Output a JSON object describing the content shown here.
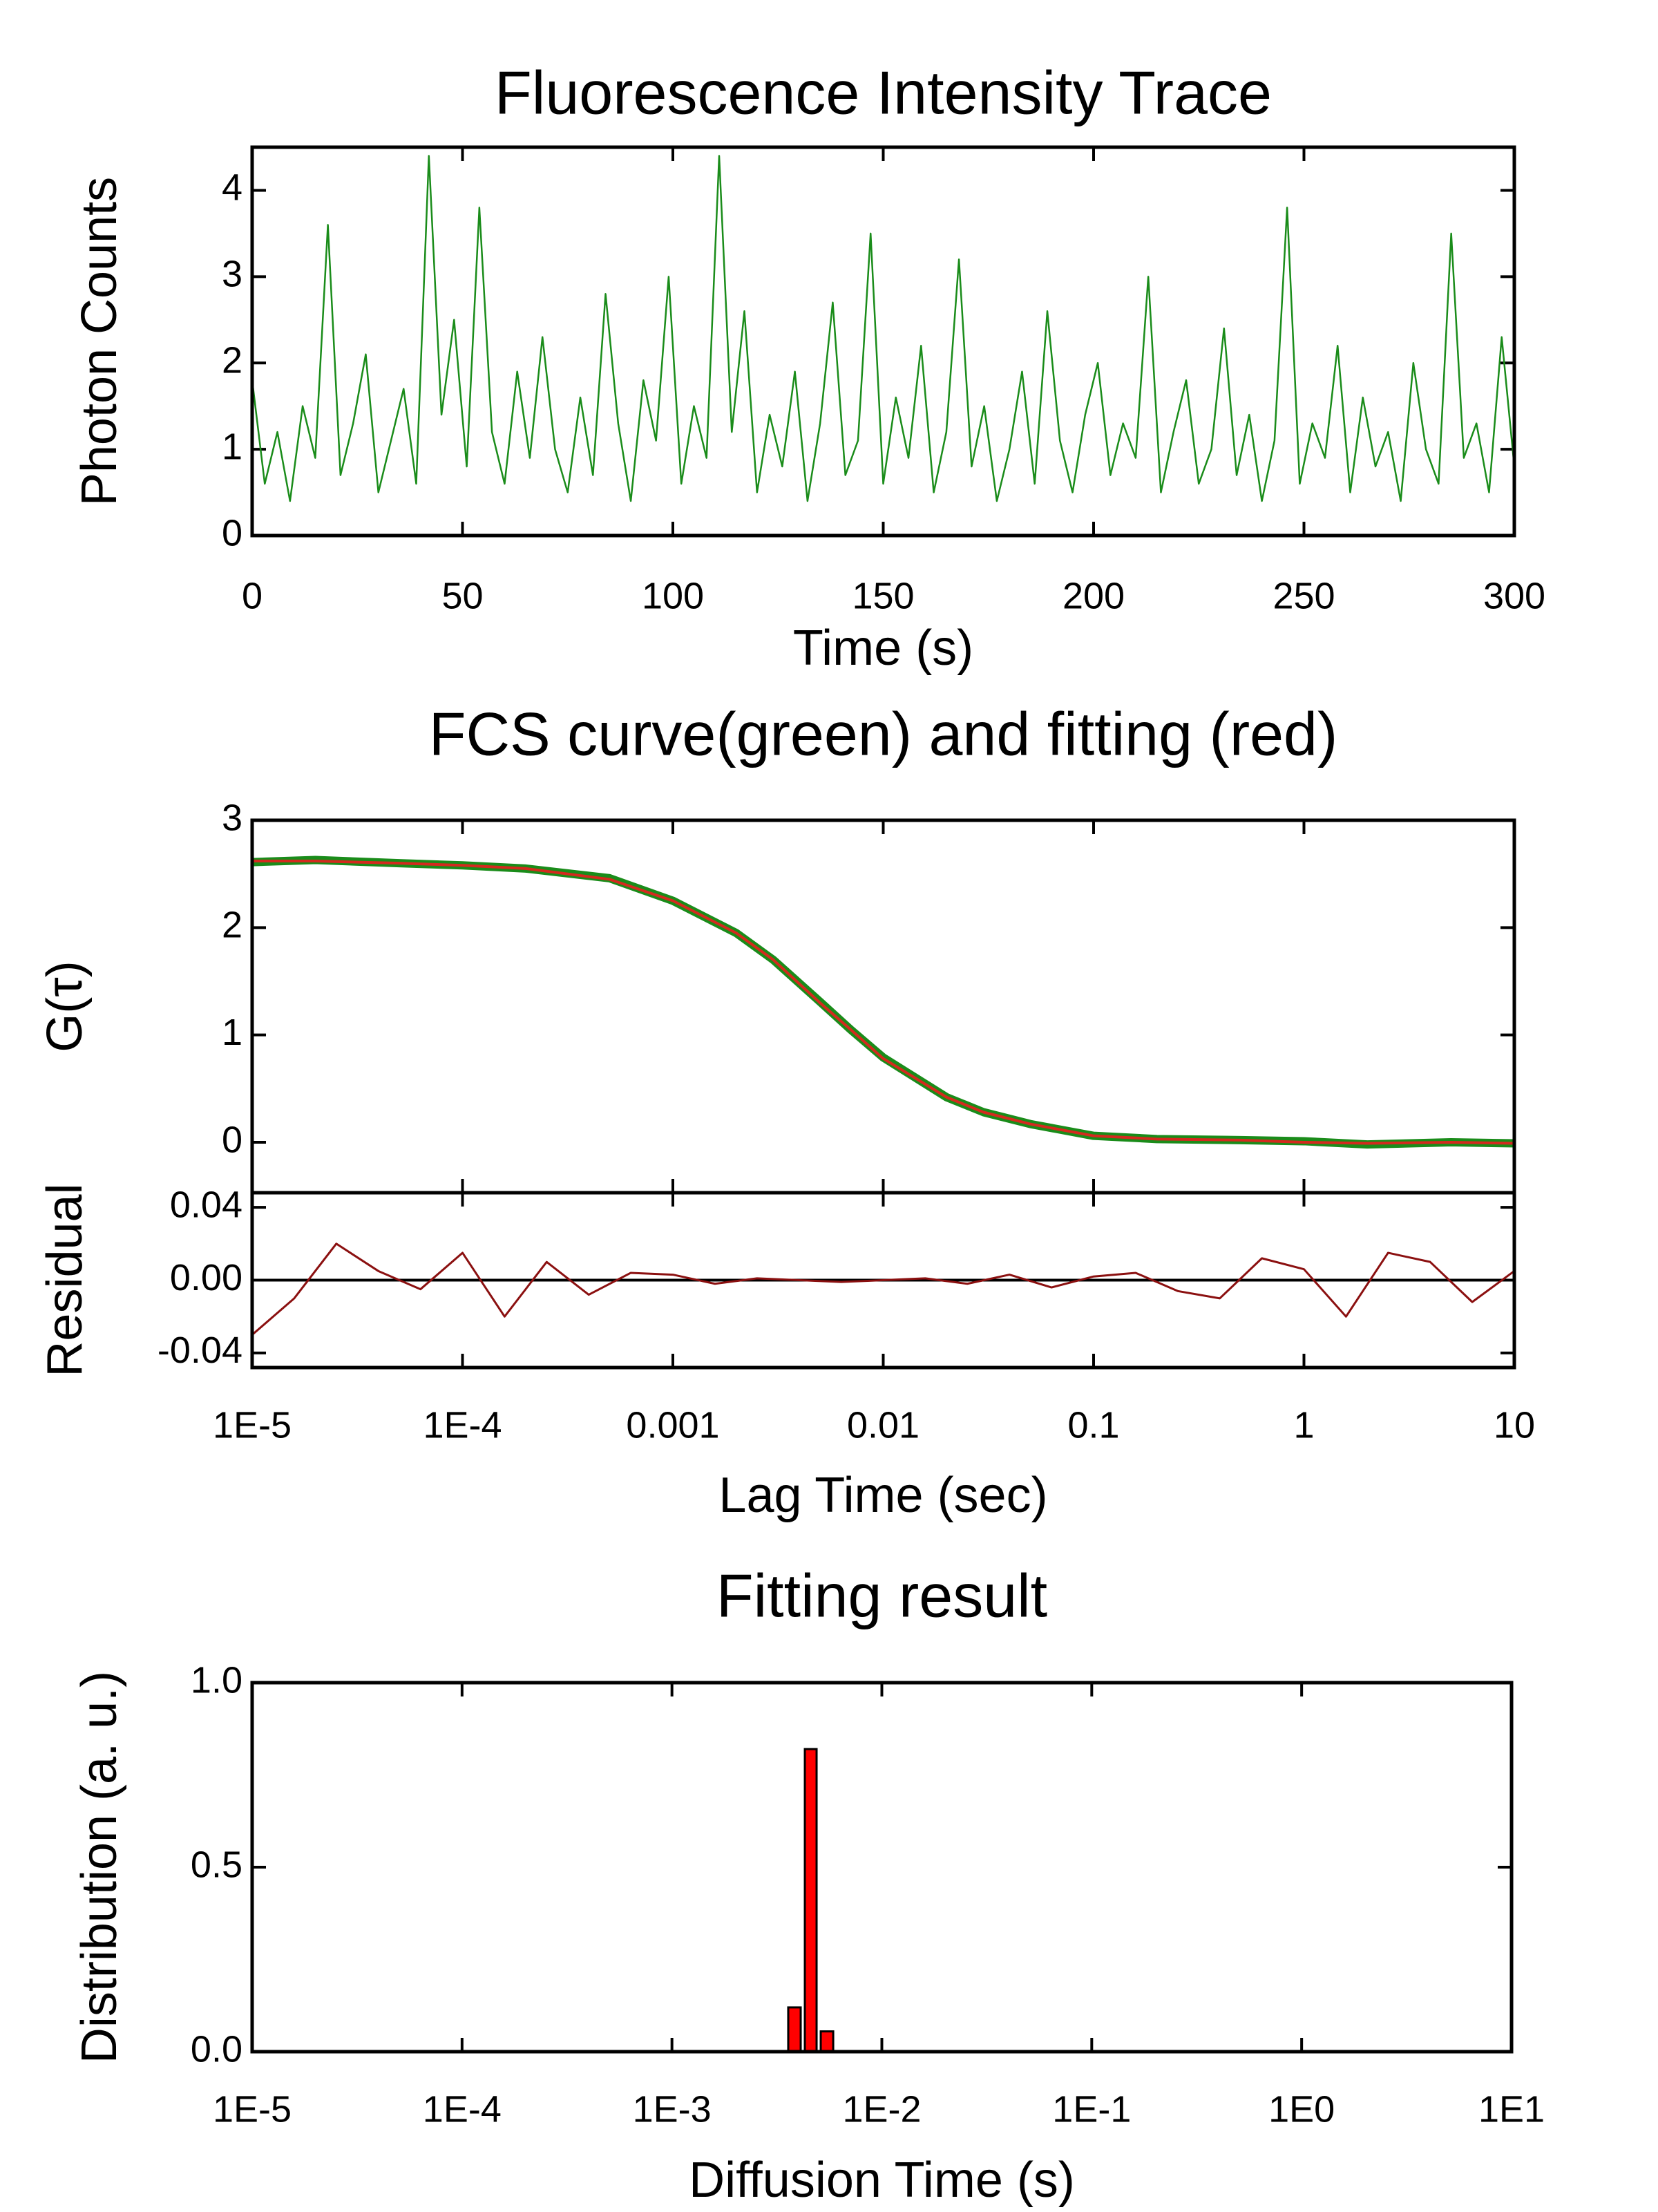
{
  "chart_data": [
    {
      "type": "line",
      "title": "Fluorescence Intensity Trace",
      "xlabel": "Time (s)",
      "ylabel": "Photon Counts",
      "x": [
        0,
        3,
        6,
        9,
        12,
        15,
        18,
        21,
        24,
        27,
        30,
        33,
        36,
        39,
        42,
        45,
        48,
        51,
        54,
        57,
        60,
        63,
        66,
        69,
        72,
        75,
        78,
        81,
        84,
        87,
        90,
        93,
        96,
        99,
        102,
        105,
        108,
        111,
        114,
        117,
        120,
        123,
        126,
        129,
        132,
        135,
        138,
        141,
        144,
        147,
        150,
        153,
        156,
        159,
        162,
        165,
        168,
        171,
        174,
        177,
        180,
        183,
        186,
        189,
        192,
        195,
        198,
        201,
        204,
        207,
        210,
        213,
        216,
        219,
        222,
        225,
        228,
        231,
        234,
        237,
        240,
        243,
        246,
        249,
        252,
        255,
        258,
        261,
        264,
        267,
        270,
        273,
        276,
        279,
        282,
        285,
        288,
        291,
        294,
        297,
        300
      ],
      "series": [
        {
          "color": "#1a8c1a",
          "values": [
            1.8,
            0.6,
            1.2,
            0.4,
            1.5,
            0.9,
            3.6,
            0.7,
            1.3,
            2.1,
            0.5,
            1.1,
            1.7,
            0.6,
            4.4,
            1.4,
            2.5,
            0.8,
            3.8,
            1.2,
            0.6,
            1.9,
            0.9,
            2.3,
            1.0,
            0.5,
            1.6,
            0.7,
            2.8,
            1.3,
            0.4,
            1.8,
            1.1,
            3.0,
            0.6,
            1.5,
            0.9,
            4.4,
            1.2,
            2.6,
            0.5,
            1.4,
            0.8,
            1.9,
            0.4,
            1.3,
            2.7,
            0.7,
            1.1,
            3.5,
            0.6,
            1.6,
            0.9,
            2.2,
            0.5,
            1.2,
            3.2,
            0.8,
            1.5,
            0.4,
            1.0,
            1.9,
            0.6,
            2.6,
            1.1,
            0.5,
            1.4,
            2.0,
            0.7,
            1.3,
            0.9,
            3.0,
            0.5,
            1.2,
            1.8,
            0.6,
            1.0,
            2.4,
            0.7,
            1.4,
            0.4,
            1.1,
            3.8,
            0.6,
            1.3,
            0.9,
            2.2,
            0.5,
            1.6,
            0.8,
            1.2,
            0.4,
            2.0,
            1.0,
            0.6,
            3.5,
            0.9,
            1.3,
            0.5,
            2.3,
            0.8
          ]
        }
      ],
      "xlim": [
        0,
        300
      ],
      "xticks": [
        0,
        50,
        100,
        150,
        200,
        250,
        300
      ],
      "ylim": [
        0,
        4.5
      ],
      "yticks": [
        0,
        1,
        2,
        3,
        4
      ]
    },
    {
      "type": "line",
      "title": "FCS curve(green) and fitting (red)",
      "ylabel": "G(τ)",
      "xscale": "log",
      "x": [
        1e-05,
        2e-05,
        5e-05,
        0.0001,
        0.0002,
        0.0005,
        0.001,
        0.002,
        0.003,
        0.005,
        0.007,
        0.01,
        0.02,
        0.03,
        0.05,
        0.1,
        0.2,
        0.5,
        1,
        2,
        5,
        10
      ],
      "series": [
        {
          "color": "#1a8c1a",
          "values": [
            2.61,
            2.63,
            2.6,
            2.58,
            2.55,
            2.46,
            2.25,
            1.95,
            1.7,
            1.31,
            1.05,
            0.79,
            0.42,
            0.28,
            0.17,
            0.06,
            0.03,
            0.02,
            0.01,
            -0.02,
            0.0,
            -0.01
          ]
        },
        {
          "color": "#d42a1e",
          "values": [
            2.62,
            2.62,
            2.6,
            2.58,
            2.55,
            2.45,
            2.25,
            1.95,
            1.7,
            1.3,
            1.05,
            0.78,
            0.42,
            0.28,
            0.17,
            0.06,
            0.03,
            0.02,
            0.0,
            -0.01,
            0.0,
            -0.01
          ]
        }
      ],
      "xlim": [
        1e-05,
        10
      ],
      "ylim": [
        -0.47,
        3
      ],
      "yticks": [
        0,
        1,
        2,
        3
      ]
    },
    {
      "type": "line",
      "xlabel": "Lag Time (sec)",
      "ylabel": "Residual",
      "xscale": "log",
      "x": [
        1e-05,
        1.585e-05,
        2.512e-05,
        3.981e-05,
        6.31e-05,
        0.0001,
        0.0001585,
        0.0002512,
        0.0003981,
        0.000631,
        0.001,
        0.001585,
        0.002512,
        0.003981,
        0.00631,
        0.01,
        0.01585,
        0.02512,
        0.03981,
        0.0631,
        0.1,
        0.1585,
        0.2512,
        0.3981,
        0.631,
        1,
        1.585,
        2.512,
        3.981,
        6.31,
        10
      ],
      "series": [
        {
          "color": "#8b1010",
          "values": [
            -0.03,
            -0.01,
            0.02,
            0.005,
            -0.005,
            0.015,
            -0.02,
            0.01,
            -0.008,
            0.004,
            0.003,
            -0.002,
            0.001,
            0.0,
            -0.001,
            0.0,
            0.001,
            -0.002,
            0.003,
            -0.004,
            0.002,
            0.004,
            -0.006,
            -0.01,
            0.012,
            0.006,
            -0.02,
            0.015,
            0.01,
            -0.012,
            0.005
          ]
        }
      ],
      "xlim": [
        1e-05,
        10
      ],
      "xticks": [
        {
          "value": 1e-05,
          "label": "1E-5"
        },
        {
          "value": 0.0001,
          "label": "1E-4"
        },
        0.001,
        0.01,
        0.1,
        1,
        10
      ],
      "ylim": [
        -0.048,
        0.048
      ],
      "yticks": [
        -0.04,
        {
          "value": 0,
          "label": "0.00"
        },
        0.04
      ]
    },
    {
      "type": "histogram",
      "title": "Fitting result",
      "xlabel": "Diffusion Time (s)",
      "ylabel": "Distribution (a. u.)",
      "xscale": "log",
      "bins": [
        0.0035,
        0.0042,
        0.005,
        0.006
      ],
      "values": [
        0.12,
        0.82,
        0.055
      ],
      "color": "#ff0000",
      "xlim": [
        1e-05,
        10
      ],
      "xticks": [
        {
          "value": 1e-05,
          "label": "1E-5"
        },
        {
          "value": 0.0001,
          "label": "1E-4"
        },
        {
          "value": 0.001,
          "label": "1E-3"
        },
        {
          "value": 0.01,
          "label": "1E-2"
        },
        {
          "value": 0.1,
          "label": "1E-1"
        },
        {
          "value": 1,
          "label": "1E0"
        },
        {
          "value": 10,
          "label": "1E1"
        }
      ],
      "ylim": [
        0,
        1
      ],
      "yticks": [
        {
          "value": 0,
          "label": "0.0"
        },
        0.5,
        {
          "value": 1,
          "label": "1.0"
        }
      ]
    }
  ]
}
